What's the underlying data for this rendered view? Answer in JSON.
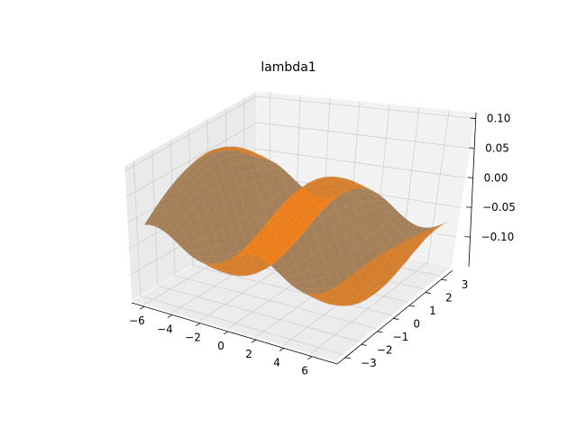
{
  "chart_data": {
    "type": "surface3d",
    "title": "lambda1",
    "xlabel": "",
    "ylabel": "",
    "zlabel": "",
    "xlim": [
      -7,
      7
    ],
    "ylim": [
      -3.3,
      3.3
    ],
    "zlim": [
      -0.11,
      0.12
    ],
    "xticks": [
      "−6",
      "−4",
      "−2",
      "0",
      "2",
      "4",
      "6"
    ],
    "yticks": [
      "−3",
      "−2",
      "−1",
      "0",
      "1",
      "2",
      "3"
    ],
    "zticks": [
      "0.10",
      "0.05",
      "0.00",
      "−0.05",
      "−0.10"
    ],
    "grid": true,
    "series": [
      {
        "color": "#1f77b4",
        "kind": "scatter-surface"
      },
      {
        "color": "#ff7f0e",
        "kind": "surface"
      }
    ]
  }
}
